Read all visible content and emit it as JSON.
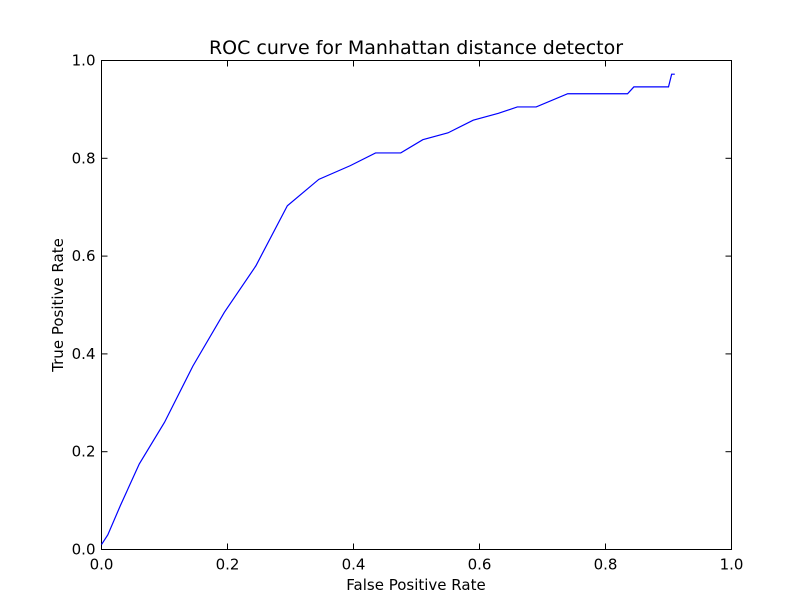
{
  "chart_data": {
    "type": "line",
    "title": "ROC curve for Manhattan distance detector",
    "xlabel": "False Positive Rate",
    "ylabel": "True Positive Rate",
    "xlim": [
      0,
      1
    ],
    "ylim": [
      0,
      1
    ],
    "grid": false,
    "legend": "none",
    "xticks": [
      "0.0",
      "0.2",
      "0.4",
      "0.6",
      "0.8",
      "1.0"
    ],
    "yticks": [
      "0.0",
      "0.2",
      "0.4",
      "0.6",
      "0.8",
      "1.0"
    ],
    "line_color": "#0000ff",
    "series": [
      {
        "x": [
          0.0,
          0.01,
          0.03,
          0.06,
          0.1,
          0.145,
          0.195,
          0.245,
          0.295,
          0.345,
          0.395,
          0.435,
          0.475,
          0.51,
          0.55,
          0.59,
          0.63,
          0.66,
          0.69,
          0.74,
          0.8,
          0.835,
          0.845,
          0.865,
          0.9,
          0.905,
          0.91
        ],
        "y": [
          0.01,
          0.03,
          0.09,
          0.175,
          0.26,
          0.375,
          0.485,
          0.58,
          0.703,
          0.757,
          0.785,
          0.811,
          0.811,
          0.838,
          0.852,
          0.878,
          0.892,
          0.905,
          0.905,
          0.932,
          0.932,
          0.932,
          0.946,
          0.946,
          0.946,
          0.972,
          0.972
        ]
      }
    ]
  }
}
